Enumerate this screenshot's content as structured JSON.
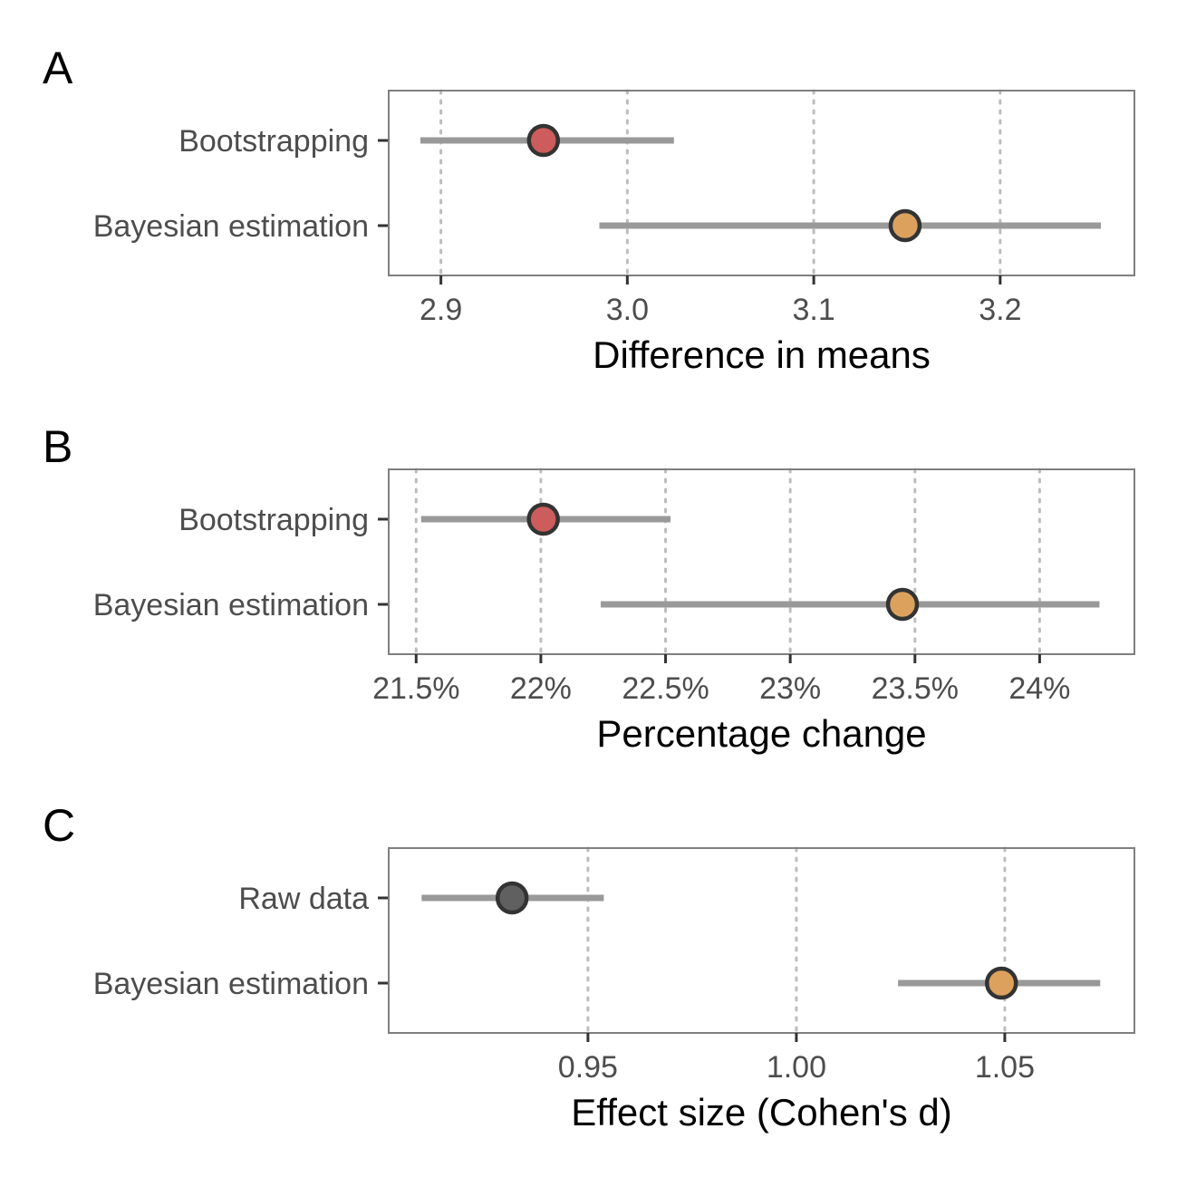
{
  "chart_data": [
    {
      "type": "dot-interval",
      "panel_label": "A",
      "xlabel": "Difference in means",
      "xlim": [
        2.872,
        3.272
      ],
      "x_ticks": [
        2.9,
        3.0,
        3.1,
        3.2
      ],
      "x_tick_labels": [
        "2.9",
        "3.0",
        "3.1",
        "3.2"
      ],
      "grid": "vertical dotted",
      "rows": [
        {
          "label": "Bootstrapping",
          "estimate": 2.955,
          "lower": 2.889,
          "upper": 3.025,
          "color": "#cd5c5c"
        },
        {
          "label": "Bayesian estimation",
          "estimate": 3.149,
          "lower": 2.985,
          "upper": 3.254,
          "color": "#dda15e"
        }
      ]
    },
    {
      "type": "dot-interval",
      "panel_label": "B",
      "xlabel": "Percentage change",
      "xlim": [
        21.39,
        24.38
      ],
      "x_ticks": [
        21.5,
        22,
        22.5,
        23,
        23.5,
        24
      ],
      "x_tick_labels": [
        "21.5%",
        "22%",
        "22.5%",
        "23%",
        "23.5%",
        "24%"
      ],
      "grid": "vertical dotted",
      "rows": [
        {
          "label": "Bootstrapping",
          "estimate": 22.01,
          "lower": 21.52,
          "upper": 22.52,
          "color": "#cd5c5c"
        },
        {
          "label": "Bayesian estimation",
          "estimate": 23.45,
          "lower": 22.24,
          "upper": 24.24,
          "color": "#dda15e"
        }
      ]
    },
    {
      "type": "dot-interval",
      "panel_label": "C",
      "xlabel": "Effect size (Cohen's d)",
      "xlim": [
        0.9022,
        1.0811
      ],
      "x_ticks": [
        0.95,
        1.0,
        1.05
      ],
      "x_tick_labels": [
        "0.95",
        "1.00",
        "1.05"
      ],
      "grid": "vertical dotted",
      "rows": [
        {
          "label": "Raw data",
          "estimate": 0.9318,
          "lower": 0.9101,
          "upper": 0.9538,
          "color": "#606060"
        },
        {
          "label": "Bayesian estimation",
          "estimate": 1.0492,
          "lower": 1.0244,
          "upper": 1.0729,
          "color": "#dda15e"
        }
      ]
    }
  ]
}
